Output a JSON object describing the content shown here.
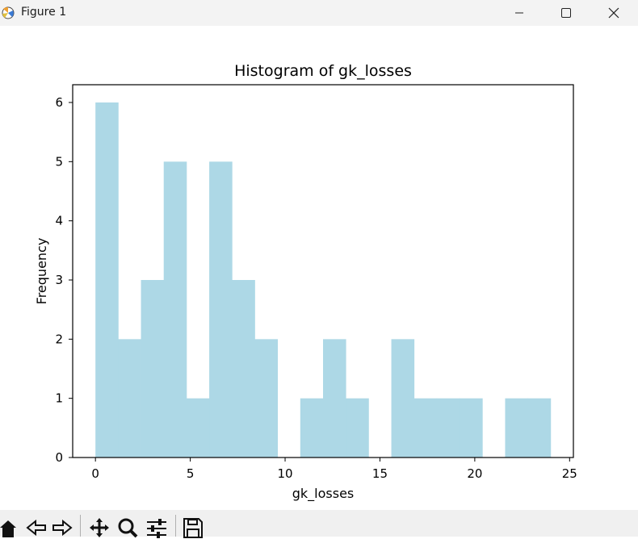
{
  "window": {
    "title": "Figure 1",
    "app_icon": "matplotlib-icon",
    "controls": [
      "minimize-icon",
      "maximize-icon",
      "close-icon"
    ]
  },
  "toolbar": {
    "buttons": [
      "home-icon",
      "back-icon",
      "forward-icon",
      "pan-icon",
      "zoom-icon",
      "configure-subplots-icon",
      "save-icon"
    ]
  },
  "chart_data": {
    "type": "bar",
    "title": "Histogram of gk_losses",
    "xlabel": "gk_losses",
    "ylabel": "Frequency",
    "bar_color": "#add8e6",
    "bin_edges": [
      0,
      1.2,
      2.4,
      3.6,
      4.8,
      6,
      7.2,
      8.4,
      9.6,
      10.8,
      12,
      13.2,
      14.4,
      15.6,
      16.8,
      18,
      19.2,
      20.4,
      21.6,
      22.8,
      24
    ],
    "values": [
      6,
      2,
      3,
      5,
      1,
      5,
      3,
      2,
      0,
      1,
      2,
      1,
      0,
      2,
      1,
      1,
      1,
      0,
      1,
      1
    ],
    "xlim": [
      -1.2,
      25.2
    ],
    "ylim": [
      0,
      6.3
    ],
    "xticks": [
      0,
      5,
      10,
      15,
      20,
      25
    ],
    "yticks": [
      0,
      1,
      2,
      3,
      4,
      5,
      6
    ],
    "grid": false,
    "legend": "none"
  }
}
